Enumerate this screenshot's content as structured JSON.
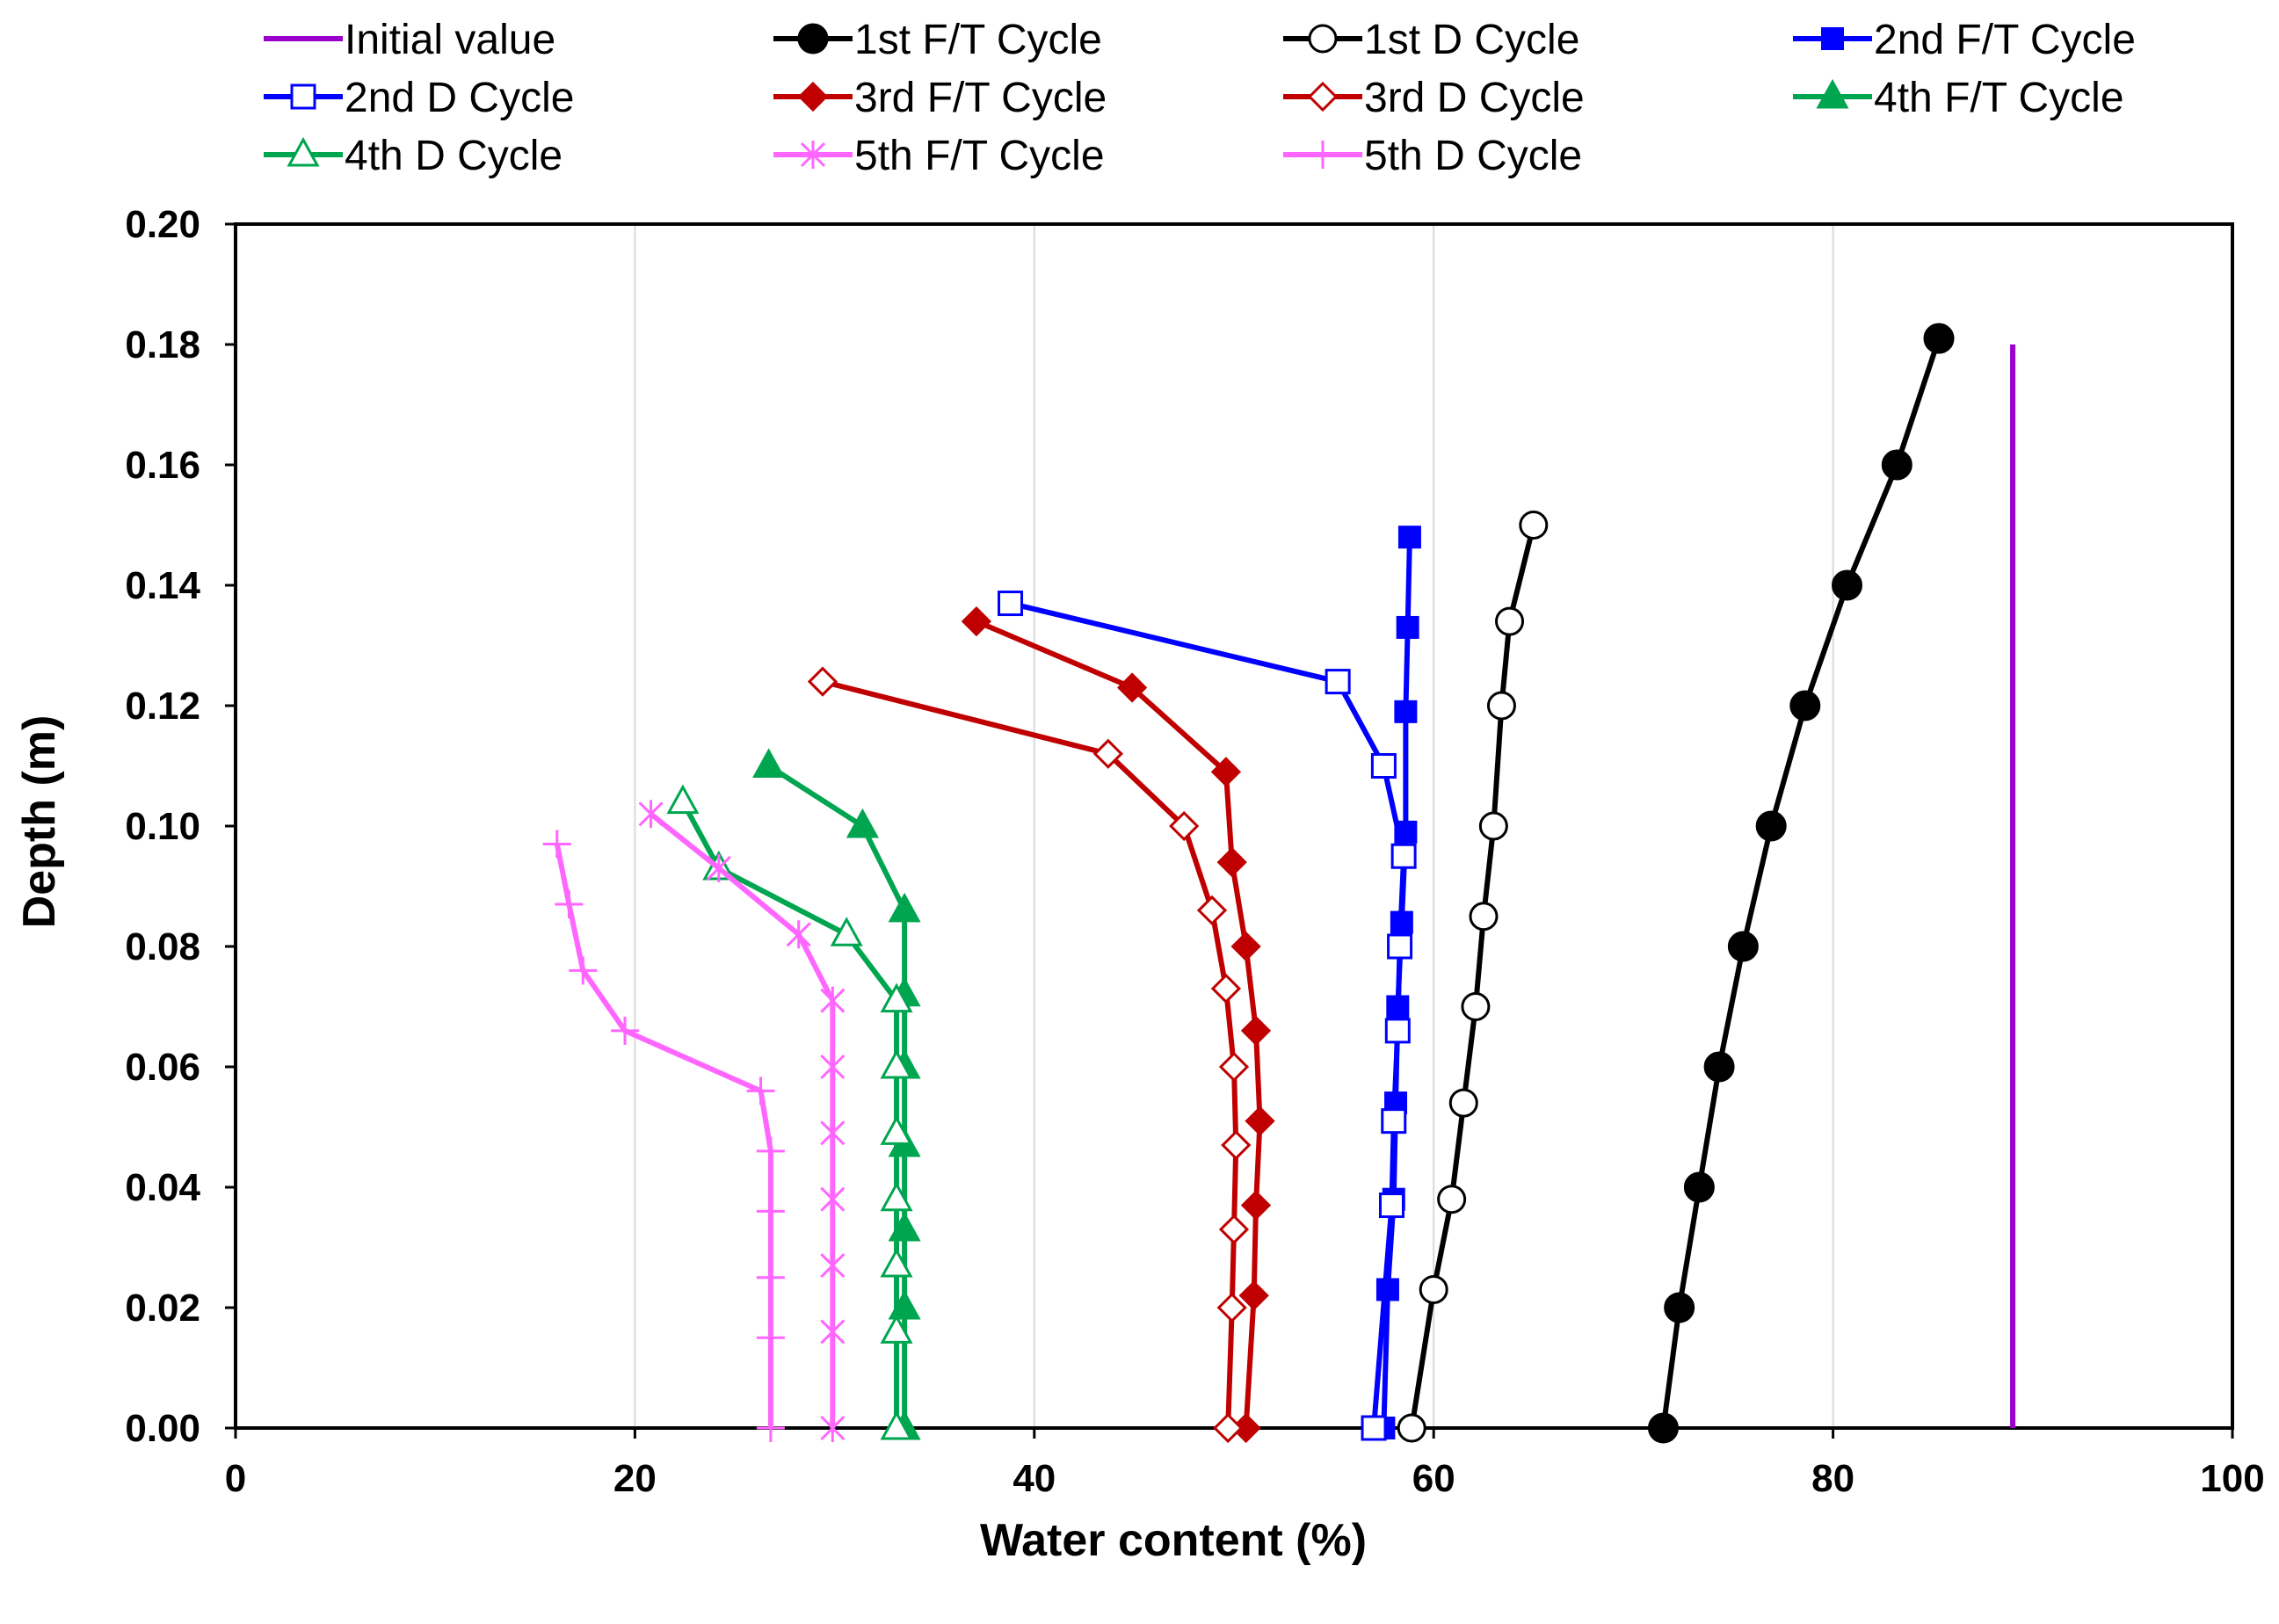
{
  "chart_data": {
    "type": "line",
    "title": "",
    "xlabel": "Water content (%)",
    "ylabel": "Depth (m)",
    "xlim": [
      0,
      100
    ],
    "ylim": [
      0,
      0.2
    ],
    "x_ticks": [
      0,
      20,
      40,
      60,
      80,
      100
    ],
    "y_ticks": [
      0,
      0.02,
      0.04,
      0.06,
      0.08,
      0.1,
      0.12,
      0.14,
      0.16,
      0.18,
      0.2
    ],
    "x_tick_labels": [
      "0",
      "20",
      "40",
      "60",
      "80",
      "100"
    ],
    "y_tick_labels": [
      "0.00",
      "0.02",
      "0.04",
      "0.06",
      "0.08",
      "0.10",
      "0.12",
      "0.14",
      "0.16",
      "0.18",
      "0.20"
    ],
    "grid": "vertical",
    "legend_position": "top",
    "series": [
      {
        "name": "Initial value",
        "color": "#9900cc",
        "marker": "none",
        "points": [
          [
            89,
            0
          ],
          [
            89,
            0.18
          ]
        ]
      },
      {
        "name": "1st F/T Cycle",
        "color": "#000000",
        "marker": "circle-filled",
        "points": [
          [
            71.5,
            0
          ],
          [
            72.3,
            0.02
          ],
          [
            73.3,
            0.04
          ],
          [
            74.3,
            0.06
          ],
          [
            75.5,
            0.08
          ],
          [
            76.9,
            0.1
          ],
          [
            78.6,
            0.12
          ],
          [
            80.7,
            0.14
          ],
          [
            83.2,
            0.16
          ],
          [
            85.3,
            0.181
          ]
        ]
      },
      {
        "name": "1st D Cycle",
        "color": "#000000",
        "marker": "circle-open",
        "points": [
          [
            58.9,
            0
          ],
          [
            60.0,
            0.023
          ],
          [
            60.9,
            0.038
          ],
          [
            61.5,
            0.054
          ],
          [
            62.1,
            0.07
          ],
          [
            62.5,
            0.085
          ],
          [
            63.0,
            0.1
          ],
          [
            63.4,
            0.12
          ],
          [
            63.8,
            0.134
          ],
          [
            65.0,
            0.15
          ]
        ]
      },
      {
        "name": "2nd F/T Cycle",
        "color": "#0000ff",
        "marker": "square-filled",
        "points": [
          [
            57.5,
            0
          ],
          [
            57.7,
            0.023
          ],
          [
            58.0,
            0.038
          ],
          [
            58.1,
            0.054
          ],
          [
            58.2,
            0.07
          ],
          [
            58.4,
            0.084
          ],
          [
            58.6,
            0.099
          ],
          [
            58.6,
            0.119
          ],
          [
            58.7,
            0.133
          ],
          [
            58.8,
            0.148
          ]
        ]
      },
      {
        "name": "2nd D Cycle",
        "color": "#0000ff",
        "marker": "square-open",
        "points": [
          [
            57.0,
            0
          ],
          [
            57.9,
            0.037
          ],
          [
            58.0,
            0.051
          ],
          [
            58.2,
            0.066
          ],
          [
            58.3,
            0.08
          ],
          [
            58.5,
            0.095
          ],
          [
            57.5,
            0.11
          ],
          [
            55.2,
            0.124
          ],
          [
            38.8,
            0.137
          ]
        ]
      },
      {
        "name": "3rd F/T Cycle",
        "color": "#c00000",
        "marker": "diamond-filled",
        "points": [
          [
            50.6,
            0
          ],
          [
            51.0,
            0.022
          ],
          [
            51.1,
            0.037
          ],
          [
            51.3,
            0.051
          ],
          [
            51.1,
            0.066
          ],
          [
            50.6,
            0.08
          ],
          [
            49.9,
            0.094
          ],
          [
            49.6,
            0.109
          ],
          [
            44.9,
            0.123
          ],
          [
            37.1,
            0.134
          ]
        ]
      },
      {
        "name": "3rd D Cycle",
        "color": "#c00000",
        "marker": "diamond-open",
        "points": [
          [
            49.7,
            0
          ],
          [
            49.9,
            0.02
          ],
          [
            50.0,
            0.033
          ],
          [
            50.1,
            0.047
          ],
          [
            50.0,
            0.06
          ],
          [
            49.6,
            0.073
          ],
          [
            48.9,
            0.086
          ],
          [
            47.5,
            0.1
          ],
          [
            43.7,
            0.112
          ],
          [
            29.4,
            0.124
          ]
        ]
      },
      {
        "name": "4th F/T Cycle",
        "color": "#00a550",
        "marker": "triangle-filled",
        "points": [
          [
            33.5,
            0
          ],
          [
            33.5,
            0.02
          ],
          [
            33.5,
            0.033
          ],
          [
            33.5,
            0.047
          ],
          [
            33.5,
            0.06
          ],
          [
            33.5,
            0.072
          ],
          [
            33.5,
            0.086
          ],
          [
            31.4,
            0.1
          ],
          [
            26.7,
            0.11
          ]
        ]
      },
      {
        "name": "4th D Cycle",
        "color": "#00a550",
        "marker": "triangle-open",
        "points": [
          [
            33.1,
            0
          ],
          [
            33.1,
            0.016
          ],
          [
            33.1,
            0.027
          ],
          [
            33.1,
            0.038
          ],
          [
            33.1,
            0.049
          ],
          [
            33.1,
            0.06
          ],
          [
            33.1,
            0.071
          ],
          [
            30.6,
            0.082
          ],
          [
            24.2,
            0.093
          ],
          [
            22.4,
            0.104
          ]
        ]
      },
      {
        "name": "5th F/T Cycle",
        "color": "#ff66ff",
        "marker": "star",
        "points": [
          [
            29.9,
            0
          ],
          [
            29.9,
            0.016
          ],
          [
            29.9,
            0.027
          ],
          [
            29.9,
            0.038
          ],
          [
            29.9,
            0.049
          ],
          [
            29.9,
            0.06
          ],
          [
            29.9,
            0.071
          ],
          [
            28.2,
            0.082
          ],
          [
            24.2,
            0.093
          ],
          [
            20.8,
            0.102
          ]
        ]
      },
      {
        "name": "5th D Cycle",
        "color": "#ff66ff",
        "marker": "plus",
        "points": [
          [
            26.8,
            0
          ],
          [
            26.8,
            0.015
          ],
          [
            26.8,
            0.025
          ],
          [
            26.8,
            0.036
          ],
          [
            26.8,
            0.046
          ],
          [
            26.3,
            0.056
          ],
          [
            19.5,
            0.066
          ],
          [
            17.4,
            0.076
          ],
          [
            16.7,
            0.087
          ],
          [
            16.1,
            0.097
          ]
        ]
      }
    ]
  }
}
